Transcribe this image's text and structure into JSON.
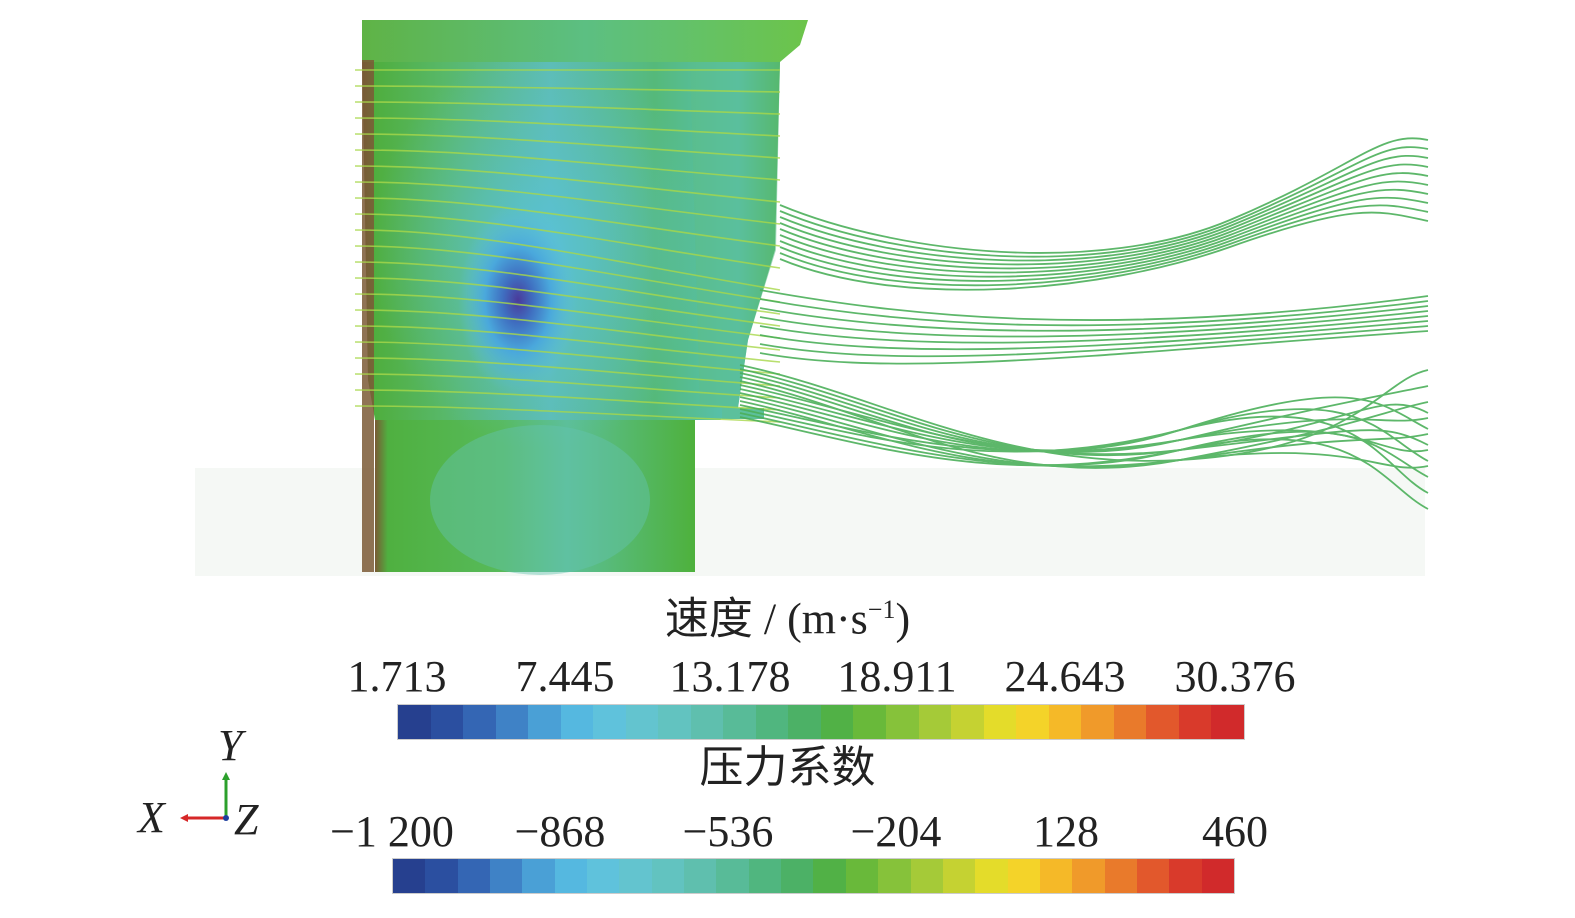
{
  "velocity_legend": {
    "title": "速度 / (m·s",
    "title_sup": "−1",
    "title_close": ")",
    "ticks": [
      "1.713",
      "7.445",
      "13.178",
      "18.911",
      "24.643",
      "30.376"
    ]
  },
  "pressure_legend": {
    "title": "压力系数",
    "ticks": [
      "−1 200",
      "−868",
      "−536",
      "−204",
      "128",
      "460"
    ]
  },
  "colormap": [
    "#26408f",
    "#2b4fa0",
    "#3466b4",
    "#3f82c6",
    "#4aa0d6",
    "#55b8e0",
    "#5fc2dc",
    "#63c4cf",
    "#62c3c0",
    "#5fbfae",
    "#58bb98",
    "#50b67f",
    "#4cb166",
    "#51b146",
    "#69b93a",
    "#86c23a",
    "#a5ca38",
    "#c5d232",
    "#e4dc2a",
    "#f4d329",
    "#f5b928",
    "#f09a2a",
    "#e97a2b",
    "#e2582c",
    "#d93a2b",
    "#d12a2b"
  ],
  "axis_triad": {
    "y": "Y",
    "x": "X",
    "z": "Z"
  }
}
